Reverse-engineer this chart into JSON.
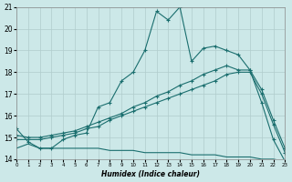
{
  "xlabel": "Humidex (Indice chaleur)",
  "bg_color": "#cce8e8",
  "line_color": "#1a6e6e",
  "grid_color": "#b0cccc",
  "x_min": 0,
  "x_max": 23,
  "y_min": 14,
  "y_max": 21,
  "line1_x": [
    0,
    1,
    2,
    3,
    4,
    5,
    6,
    7,
    8,
    9,
    10,
    11,
    12,
    13,
    14,
    15,
    16,
    17,
    18,
    19,
    20,
    21,
    22,
    23
  ],
  "line1_y": [
    15.4,
    14.8,
    14.5,
    14.5,
    14.9,
    15.1,
    15.2,
    16.4,
    16.6,
    17.6,
    18.0,
    19.0,
    20.8,
    20.4,
    21.0,
    18.5,
    19.1,
    19.2,
    19.0,
    18.8,
    18.1,
    16.6,
    14.9,
    13.9
  ],
  "line2_x": [
    0,
    1,
    2,
    3,
    4,
    5,
    6,
    7,
    8,
    9,
    10,
    11,
    12,
    13,
    14,
    15,
    16,
    17,
    18,
    19,
    20,
    21,
    22,
    23
  ],
  "line2_y": [
    15.1,
    15.0,
    15.0,
    15.1,
    15.2,
    15.3,
    15.5,
    15.7,
    15.9,
    16.1,
    16.4,
    16.6,
    16.9,
    17.1,
    17.4,
    17.6,
    17.9,
    18.1,
    18.3,
    18.1,
    18.1,
    17.2,
    15.8,
    14.5
  ],
  "line3_x": [
    0,
    1,
    2,
    3,
    4,
    5,
    6,
    7,
    8,
    9,
    10,
    11,
    12,
    13,
    14,
    15,
    16,
    17,
    18,
    19,
    20,
    21,
    22,
    23
  ],
  "line3_y": [
    14.9,
    14.9,
    14.9,
    15.0,
    15.1,
    15.2,
    15.4,
    15.5,
    15.8,
    16.0,
    16.2,
    16.4,
    16.6,
    16.8,
    17.0,
    17.2,
    17.4,
    17.6,
    17.9,
    18.0,
    18.0,
    17.0,
    15.6,
    14.3
  ],
  "line4_x": [
    0,
    1,
    2,
    3,
    4,
    5,
    6,
    7,
    8,
    9,
    10,
    11,
    12,
    13,
    14,
    15,
    16,
    17,
    18,
    19,
    20,
    21,
    22,
    23
  ],
  "line4_y": [
    14.5,
    14.7,
    14.5,
    14.5,
    14.5,
    14.5,
    14.5,
    14.5,
    14.4,
    14.4,
    14.4,
    14.3,
    14.3,
    14.3,
    14.3,
    14.2,
    14.2,
    14.2,
    14.1,
    14.1,
    14.1,
    14.0,
    14.0,
    13.9
  ],
  "yticks": [
    14,
    15,
    16,
    17,
    18,
    19,
    20,
    21
  ],
  "xtick_labels": [
    "0",
    "1",
    "2",
    "3",
    "4",
    "5",
    "6",
    "7",
    "8",
    "9",
    "10",
    "11",
    "12",
    "13",
    "14",
    "15",
    "16",
    "17",
    "18",
    "19",
    "20",
    "21",
    "22",
    "23"
  ]
}
